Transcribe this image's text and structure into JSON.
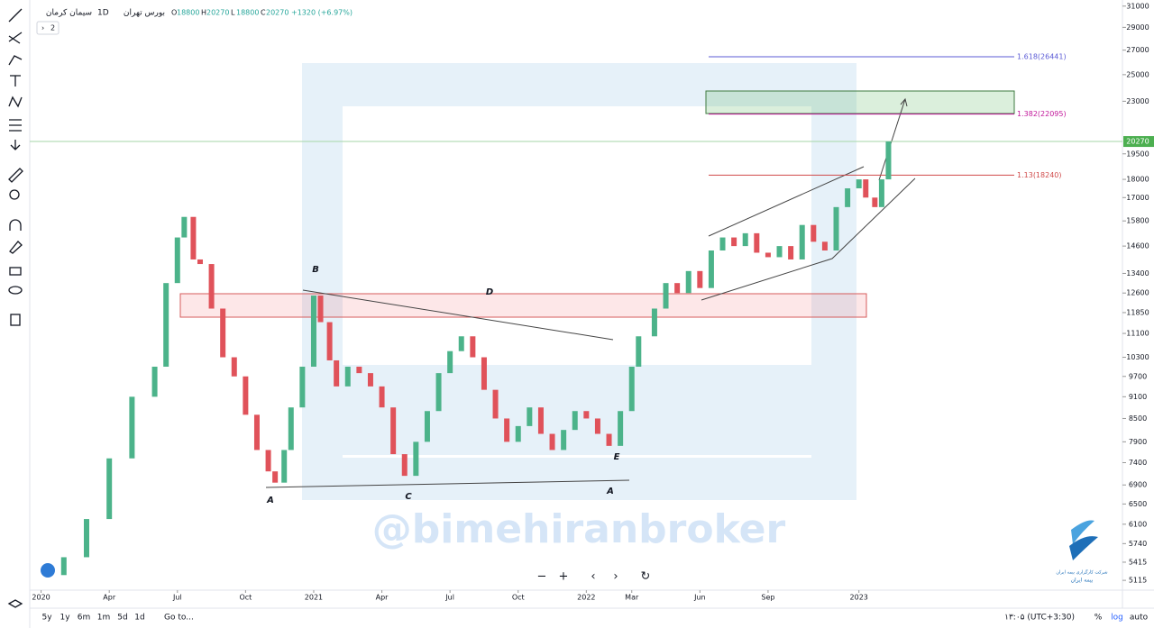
{
  "header": {
    "symbol": "سیمان کرمان",
    "interval": "1D",
    "exchange": "بورس تهران",
    "ohlc": [
      {
        "label": "O",
        "value": "18800"
      },
      {
        "label": "H",
        "value": "20270"
      },
      {
        "label": "L",
        "value": "18800"
      },
      {
        "label": "C",
        "value": "20270"
      }
    ],
    "change": "+1320 (+6.97%)",
    "collapse": "2"
  },
  "chart_data": {
    "type": "candlestick",
    "x": [
      0,
      1,
      2,
      3,
      4,
      5,
      5.5,
      6,
      6.3,
      6.7,
      7,
      7.5,
      8,
      8.5,
      9,
      9.5,
      10,
      10.3,
      10.7,
      11,
      11.5,
      12,
      12.3,
      12.7,
      13,
      13.5,
      14,
      14.5,
      15,
      15.5,
      16,
      16.5,
      17,
      17.5,
      18,
      18.5,
      19,
      19.5,
      20,
      20.5,
      21,
      21.5,
      22,
      22.5,
      23,
      23.5,
      24,
      24.5,
      25,
      25.5,
      26,
      26.3,
      27,
      27.5,
      28,
      28.5,
      29,
      29.5,
      30,
      30.5,
      31,
      31.5,
      32,
      32.5,
      33,
      33.5,
      34,
      34.5,
      35,
      35.5,
      36,
      36.3,
      36.7,
      37,
      37.3
    ],
    "values": [
      5200,
      5500,
      6200,
      7500,
      9100,
      10000,
      13000,
      15000,
      16000,
      14000,
      13800,
      12000,
      10300,
      9700,
      8600,
      7700,
      7200,
      6950,
      7700,
      8800,
      10000,
      12500,
      11500,
      10200,
      9400,
      10000,
      9800,
      9400,
      8800,
      7600,
      7100,
      7900,
      8700,
      9800,
      10500,
      11000,
      10300,
      9300,
      8500,
      7900,
      8300,
      8800,
      8100,
      7700,
      8200,
      8700,
      8500,
      8100,
      7800,
      8700,
      10000,
      11000,
      12000,
      13000,
      12600,
      13500,
      12800,
      14400,
      15000,
      14600,
      15200,
      14300,
      14100,
      14600,
      14000,
      15600,
      14800,
      14400,
      16500,
      17500,
      18000,
      17000,
      16500,
      18000,
      20270
    ],
    "up_color": "#4cb38a",
    "down_color": "#e0525a",
    "log": true,
    "xlim": [
      -0.5,
      47.6
    ],
    "ylim": [
      4960,
      31600
    ],
    "xticks": [
      {
        "value": 0,
        "label": "2020"
      },
      {
        "value": 3,
        "label": "Apr"
      },
      {
        "value": 6,
        "label": "Jul"
      },
      {
        "value": 9,
        "label": "Oct"
      },
      {
        "value": 12,
        "label": "2021"
      },
      {
        "value": 15,
        "label": "Apr"
      },
      {
        "value": 18,
        "label": "Jul"
      },
      {
        "value": 21,
        "label": "Oct"
      },
      {
        "value": 24,
        "label": "2022"
      },
      {
        "value": 26,
        "label": "Mar"
      },
      {
        "value": 29,
        "label": "Jun"
      },
      {
        "value": 32,
        "label": "Sep"
      },
      {
        "value": 36,
        "label": "2023"
      }
    ],
    "yticks": [
      31000,
      29000,
      27000,
      25000,
      23000,
      19500,
      18000,
      17000,
      15800,
      14600,
      13400,
      12600,
      11850,
      11100,
      10300,
      9700,
      9100,
      8500,
      7900,
      7400,
      6900,
      6500,
      6100,
      5740,
      5415,
      5115
    ],
    "last_price": 20270,
    "last_color": "#4caf50",
    "fib_levels": [
      {
        "label": "1.618(26441)",
        "value": 26441,
        "color": "#5b5bd6"
      },
      {
        "label": "1.382(22095)",
        "value": 22095,
        "color": "#c2189b"
      },
      {
        "label": "1.13(18240)",
        "value": 18240,
        "color": "#d04a4a"
      }
    ],
    "wave_labels": [
      "A",
      "B",
      "C",
      "D",
      "E",
      "A"
    ],
    "watermark": "@bimehiranbroker"
  },
  "nav_buttons": [
    "−",
    "+",
    "‹",
    "›",
    "↻"
  ],
  "toolbar": {
    "ranges": [
      "5y",
      "1y",
      "6m",
      "1m",
      "5d",
      "1d"
    ],
    "goto": "Go to...",
    "time": "۱۳:۰۵ (UTC+3:30)",
    "percent": "%",
    "log": "log",
    "auto": "auto"
  },
  "logo": {
    "line1": "شرکت کارگزاری بیمه ایران",
    "line2": "بیمه ایران"
  }
}
